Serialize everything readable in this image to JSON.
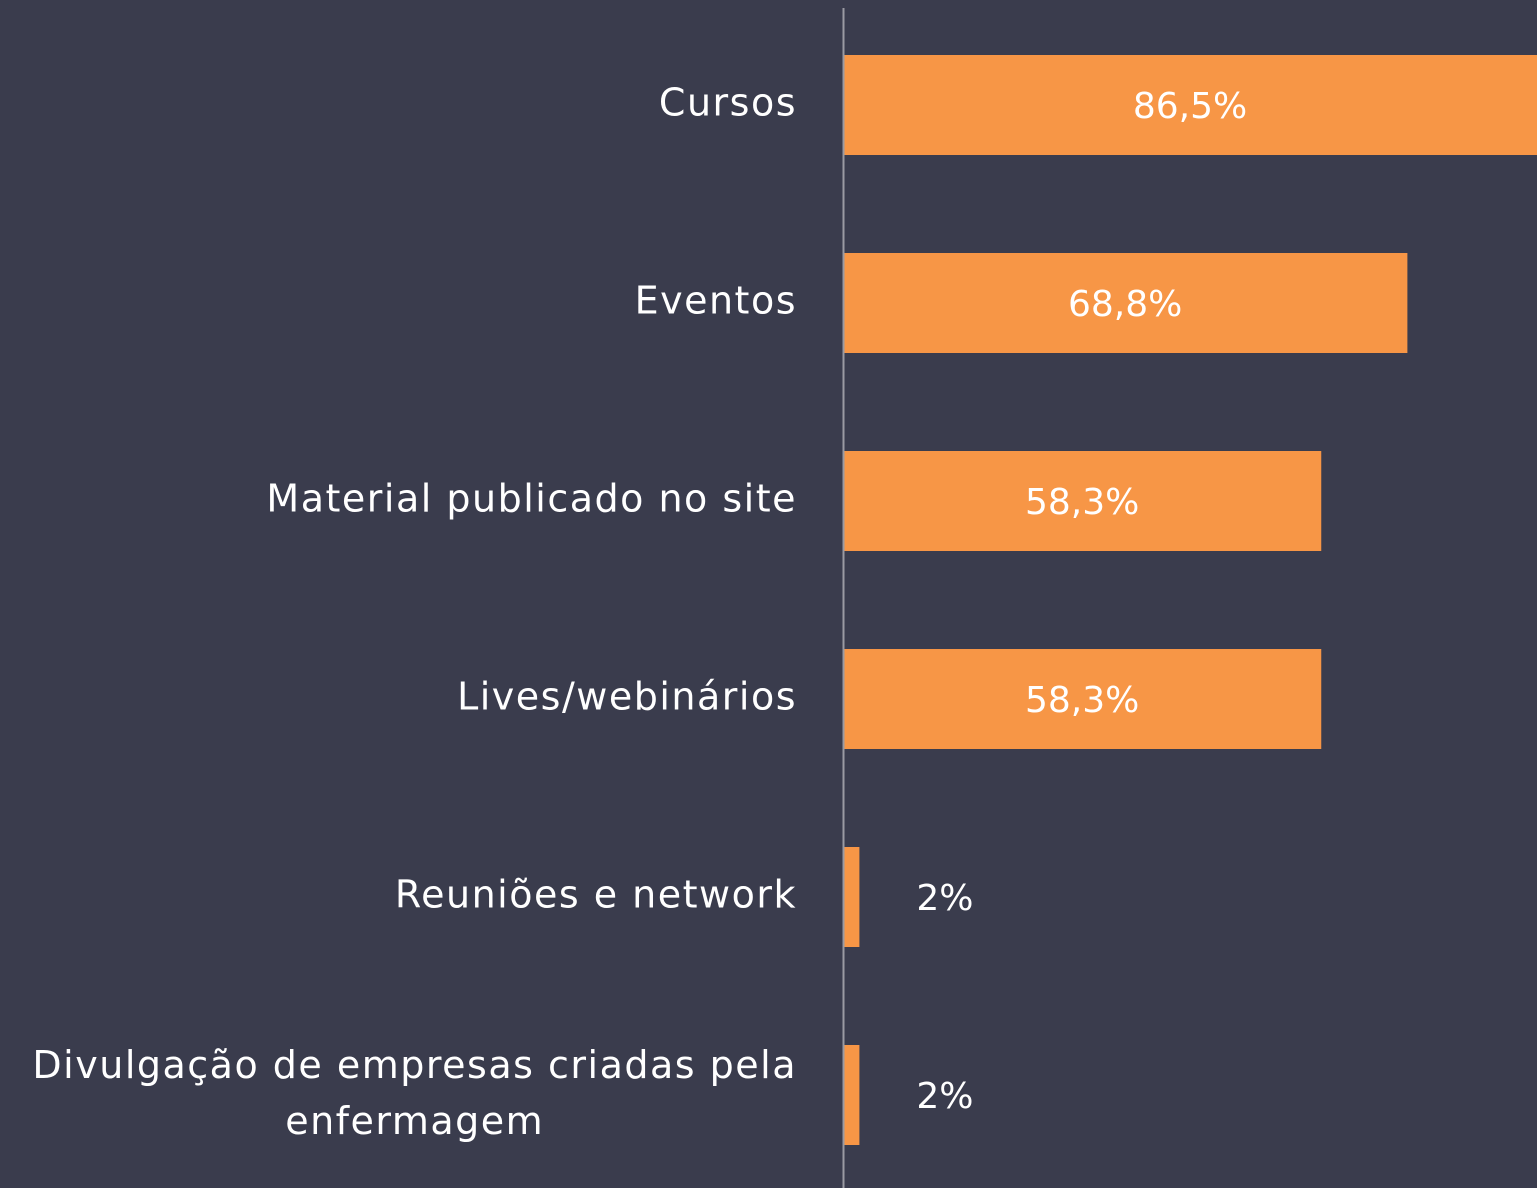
{
  "chart_data": {
    "type": "bar",
    "orientation": "horizontal",
    "categories": [
      "Cursos",
      "Eventos",
      "Material publicado no site",
      "Lives/webinários",
      "Reuniões e network",
      "Divulgação de empresas criadas pela enfermagem"
    ],
    "values": [
      86.5,
      68.8,
      58.3,
      58.3,
      2,
      2
    ],
    "value_labels": [
      "86,5%",
      "68,8%",
      "58,3%",
      "58,3%",
      "2%",
      "2%"
    ],
    "color": "#f79646",
    "xlim": [
      0,
      84.6
    ],
    "grid": false
  }
}
